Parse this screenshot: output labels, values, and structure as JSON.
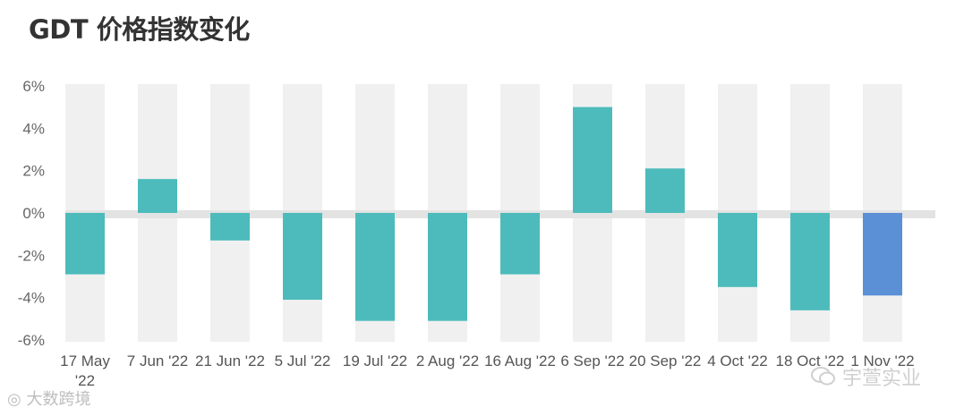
{
  "title": "GDT 价格指数变化",
  "watermarks": {
    "left": "大数跨境",
    "right": "宇萱实业"
  },
  "colors": {
    "bar": "#4dbbbb",
    "highlight": "#5b8fd6",
    "band": "#f0f0f0",
    "zero_band": "#e3e3e3",
    "text": "#666666"
  },
  "chart_data": {
    "type": "bar",
    "title": "GDT 价格指数变化",
    "xlabel": "",
    "ylabel": "",
    "categories": [
      "17 May '22",
      "7 Jun '22",
      "21 Jun '22",
      "5 Jul '22",
      "19 Jul '22",
      "2 Aug '22",
      "16 Aug '22",
      "6 Sep '22",
      "20 Sep '22",
      "4 Oct '22",
      "18 Oct '22",
      "1 Nov '22"
    ],
    "values": [
      -2.9,
      1.6,
      -1.3,
      -4.1,
      -5.1,
      -5.1,
      -2.9,
      5.0,
      2.1,
      -3.5,
      -4.6,
      -3.9
    ],
    "highlight_index": 11,
    "ylim": [
      -6,
      6
    ],
    "yticks": [
      6,
      4,
      2,
      0,
      -2,
      -4,
      -6
    ],
    "ytick_labels": [
      "6%",
      "4%",
      "2%",
      "0%",
      "-2%",
      "-4%",
      "-6%"
    ],
    "grid": false,
    "legend": "none"
  }
}
